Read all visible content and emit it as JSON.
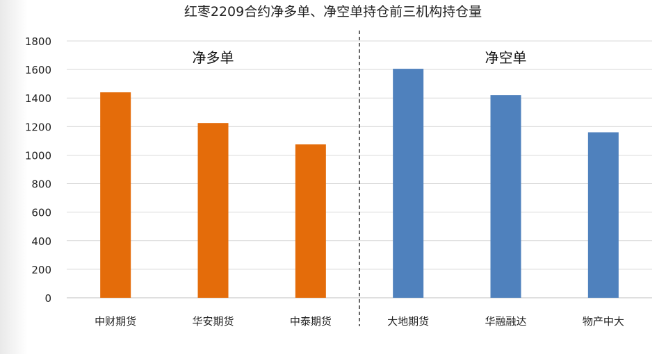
{
  "chart_data": {
    "type": "bar",
    "title": "红枣2209合约净多单、净空单持仓前三机构持仓量",
    "xlabel": "",
    "ylabel": "",
    "ylim": [
      0,
      1800
    ],
    "yticks": [
      0,
      200,
      400,
      600,
      800,
      1000,
      1200,
      1400,
      1600,
      1800
    ],
    "grid": true,
    "legend": "none",
    "categories": [
      "中财期货",
      "华安期货",
      "中泰期货",
      "大地期货",
      "华融融达",
      "物产中大"
    ],
    "values": [
      1440,
      1225,
      1075,
      1605,
      1420,
      1160
    ],
    "groups": [
      {
        "label": "净多单",
        "color": "#E46C0A",
        "start": 0,
        "end": 3
      },
      {
        "label": "净空单",
        "color": "#4F81BD",
        "start": 3,
        "end": 6
      }
    ]
  }
}
